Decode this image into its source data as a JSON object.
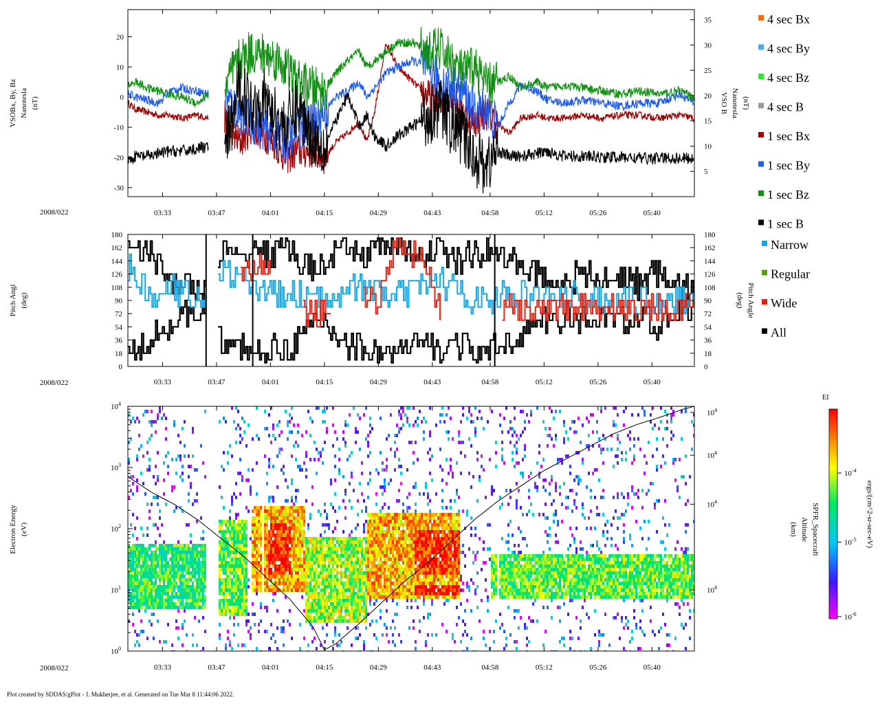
{
  "date_label": "2008/022",
  "footer": "Plot created by SDDAS/gPlot - J. Mukherjee, et al.  Generated on Tue Mar 8 11:44:06 2022.",
  "time_axis": {
    "start_min": 204,
    "end_min": 351,
    "ticks": [
      {
        "label": "03:33",
        "min": 213
      },
      {
        "label": "03:47",
        "min": 227
      },
      {
        "label": "04:01",
        "min": 241
      },
      {
        "label": "04:15",
        "min": 255
      },
      {
        "label": "04:29",
        "min": 269
      },
      {
        "label": "04:43",
        "min": 283
      },
      {
        "label": "04:58",
        "min": 298
      },
      {
        "label": "05:12",
        "min": 312
      },
      {
        "label": "05:26",
        "min": 326
      },
      {
        "label": "05:40",
        "min": 340
      }
    ]
  },
  "colors": {
    "bx4": "#ff6a00",
    "by4": "#4aa8f0",
    "bz4": "#22ee22",
    "b4": "#999999",
    "bx1": "#a00000",
    "by1": "#1e5af0",
    "bz1": "#109010",
    "b1": "#000000",
    "narrow": "#10a8e8",
    "regular": "#58a010",
    "wide": "#e82010",
    "all": "#000000"
  },
  "chart_data": [
    {
      "type": "line",
      "panel": "magnetic-field",
      "ylabel_left": [
        "VSOBx, By, Bz",
        "Nanotesla",
        "(nT)"
      ],
      "ylabel_right": [
        "VSO B",
        "Nanotesla",
        "(nT)"
      ],
      "ylim_left": [
        -33,
        29
      ],
      "ylim_right": [
        0,
        37
      ],
      "yticks_left": [
        20,
        10,
        0,
        -10,
        -20,
        -30
      ],
      "yticks_right": [
        35,
        30,
        25,
        20,
        15,
        10,
        5
      ],
      "legend": [
        "4 sec Bx",
        "4 sec By",
        "4 sec Bz",
        "4 sec B",
        "1 sec Bx",
        "1 sec By",
        "1 sec Bz",
        "1 sec B"
      ],
      "x": [
        204,
        206,
        209,
        212,
        215,
        218,
        222,
        225,
        226,
        229,
        231,
        233,
        236,
        239,
        242,
        245,
        248,
        252,
        255,
        258,
        261,
        264,
        266,
        268,
        271,
        274,
        278,
        282,
        285,
        288,
        291,
        294,
        297,
        300,
        303,
        306,
        310,
        313,
        317,
        322,
        327,
        332,
        337,
        342,
        347,
        351
      ],
      "series": [
        {
          "name": "1 sec Bx",
          "values": [
            -2,
            -4,
            -5,
            -6,
            -6,
            -7,
            -6,
            -7,
            null,
            -7,
            -12,
            -15,
            -10,
            -12,
            -15,
            -20,
            -18,
            -18,
            -20,
            -15,
            -12,
            -8,
            -15,
            -5,
            18,
            10,
            5,
            0,
            -2,
            2,
            -5,
            -8,
            -5,
            -9,
            -12,
            -7,
            -6,
            -7,
            -7,
            -6,
            -7,
            -6,
            -6,
            -7,
            -6,
            -7
          ]
        },
        {
          "name": "1 sec By",
          "values": [
            1,
            0,
            -1,
            -2,
            2,
            3,
            2,
            1,
            null,
            1,
            -3,
            -5,
            -8,
            -10,
            -12,
            -15,
            -10,
            -8,
            -5,
            0,
            2,
            5,
            0,
            3,
            8,
            10,
            12,
            10,
            5,
            3,
            2,
            -5,
            -3,
            -10,
            -2,
            4,
            2,
            -1,
            -2,
            -1,
            -2,
            -3,
            -2,
            -2,
            1,
            -2
          ]
        },
        {
          "name": "1 sec Bz",
          "values": [
            4,
            5,
            3,
            2,
            1,
            0,
            -2,
            1,
            null,
            2,
            8,
            12,
            15,
            14,
            13,
            10,
            5,
            3,
            2,
            8,
            12,
            15,
            10,
            12,
            15,
            18,
            18,
            15,
            16,
            12,
            8,
            10,
            4,
            5,
            7,
            3,
            5,
            3,
            4,
            3,
            2,
            1,
            2,
            1,
            2,
            0
          ]
        },
        {
          "name": "1 sec B",
          "values": [
            7,
            8,
            8,
            8.5,
            9,
            9,
            9.5,
            10,
            null,
            8,
            15,
            22,
            18,
            20,
            16,
            14,
            18,
            12,
            10,
            15,
            20,
            14,
            16,
            12,
            10,
            12,
            14,
            16,
            18,
            14,
            12,
            8,
            6,
            9,
            8,
            8,
            8.5,
            9,
            8,
            8,
            7.8,
            7.8,
            7.6,
            7.6,
            7.6,
            7.5
          ]
        }
      ]
    },
    {
      "type": "line",
      "panel": "pitch-angle",
      "ylabel_left": [
        "Pitch Angl",
        "(deg)"
      ],
      "ylabel_right": [
        "Pitch Angle",
        "(deg)"
      ],
      "ylim": [
        0,
        180
      ],
      "yticks": [
        180,
        162,
        144,
        126,
        108,
        90,
        72,
        54,
        36,
        18,
        0
      ],
      "legend": [
        "Narrow",
        "Regular",
        "Wide",
        "All"
      ],
      "x": [
        204,
        207,
        210,
        213,
        216,
        219,
        222,
        225,
        229,
        233,
        237,
        241,
        245,
        249,
        253,
        257,
        261,
        265,
        269,
        273,
        277,
        281,
        285,
        289,
        293,
        297,
        301,
        305,
        309,
        313,
        317,
        321,
        325,
        329,
        333,
        337,
        341,
        345,
        351
      ],
      "series": [
        {
          "name": "All upper",
          "values": [
            170,
            165,
            150,
            130,
            120,
            110,
            105,
            100,
            160,
            140,
            165,
            150,
            170,
            140,
            130,
            150,
            160,
            150,
            165,
            170,
            150,
            155,
            165,
            140,
            150,
            160,
            150,
            140,
            130,
            120,
            115,
            125,
            120,
            115,
            125,
            110,
            130,
            110,
            105
          ]
        },
        {
          "name": "All lower",
          "values": [
            10,
            20,
            40,
            55,
            60,
            70,
            80,
            85,
            20,
            30,
            15,
            20,
            25,
            40,
            60,
            50,
            30,
            25,
            20,
            15,
            25,
            30,
            20,
            35,
            20,
            15,
            30,
            40,
            55,
            60,
            70,
            60,
            65,
            70,
            60,
            70,
            50,
            75,
            80
          ]
        },
        {
          "name": "Narrow",
          "values": [
            140,
            110,
            95,
            100,
            105,
            100,
            95,
            90,
            130,
            120,
            110,
            100,
            95,
            100,
            90,
            100,
            110,
            105,
            100,
            95,
            100,
            110,
            120,
            100,
            95,
            90,
            95,
            100,
            95,
            100,
            90,
            95,
            92,
            90,
            88,
            90,
            88,
            90,
            90
          ]
        },
        {
          "name": "Wide",
          "values": [
            null,
            null,
            null,
            null,
            null,
            null,
            null,
            null,
            null,
            140,
            135,
            130,
            null,
            75,
            70,
            72,
            null,
            85,
            90,
            170,
            160,
            150,
            70,
            null,
            60,
            null,
            80,
            78,
            70,
            75,
            85,
            80,
            82,
            80,
            78,
            80,
            80,
            82,
            84
          ]
        }
      ]
    },
    {
      "type": "heatmap",
      "panel": "electron-spectrogram",
      "ylabel_left": [
        "Electron Energy",
        "(eV)"
      ],
      "ylabel_right": [
        "SPFR_Spacecraft",
        "Altitude",
        "(km)"
      ],
      "y_scale": "log",
      "ylim": [
        1,
        10000
      ],
      "yticks_left": [
        "10^4",
        "10^3",
        "10^2",
        "10^1",
        "10^0"
      ],
      "yticks_right": [
        "10^4",
        "10^4",
        "10^4",
        "10^4"
      ],
      "colorbar": {
        "title": "EI",
        "label": "ergs/(cm^2-sr-sec-eV)",
        "ticks": [
          "10^-4",
          "10^-5",
          "10^-6"
        ],
        "range": [
          1e-06,
          0.001
        ]
      },
      "altitude_curve": {
        "x": [
          204,
          210,
          216,
          222,
          228,
          234,
          240,
          246,
          252,
          255,
          258,
          264,
          270,
          276,
          282,
          288,
          294,
          300,
          306,
          312,
          318,
          324,
          330,
          336,
          342,
          348,
          351
        ],
        "log_energy": [
          2.85,
          2.6,
          2.4,
          2.15,
          1.85,
          1.55,
          1.2,
          0.85,
          0.4,
          0.02,
          0.12,
          0.45,
          0.8,
          1.15,
          1.45,
          1.8,
          2.15,
          2.45,
          2.7,
          2.95,
          3.15,
          3.35,
          3.55,
          3.7,
          3.82,
          3.95,
          4.0
        ]
      },
      "bands": [
        {
          "x0": 204,
          "x1": 224,
          "log_e0": 0.7,
          "log_e1": 1.8,
          "level": 0.55
        },
        {
          "x0": 227,
          "x1": 235,
          "log_e0": 0.6,
          "log_e1": 2.2,
          "level": 0.6
        },
        {
          "x0": 236,
          "x1": 250,
          "log_e0": 1.0,
          "log_e1": 2.4,
          "level": 0.8
        },
        {
          "x0": 240,
          "x1": 246,
          "log_e0": 1.3,
          "log_e1": 2.1,
          "level": 0.95
        },
        {
          "x0": 250,
          "x1": 266,
          "log_e0": 0.5,
          "log_e1": 1.9,
          "level": 0.65
        },
        {
          "x0": 266,
          "x1": 290,
          "log_e0": 0.9,
          "log_e1": 2.3,
          "level": 0.8
        },
        {
          "x0": 278,
          "x1": 290,
          "log_e0": 1.3,
          "log_e1": 2.0,
          "level": 0.95
        },
        {
          "x0": 278,
          "x1": 290,
          "log_e0": 0.95,
          "log_e1": 1.1,
          "level": 1.0
        },
        {
          "x0": 298,
          "x1": 351,
          "log_e0": 0.9,
          "log_e1": 1.6,
          "level": 0.6
        }
      ],
      "gaps": [
        [
          224.3,
          227.3
        ],
        [
          238.4,
          238.9
        ],
        [
          247.9,
          248.3
        ],
        [
          299.3,
          299.9
        ]
      ]
    }
  ]
}
